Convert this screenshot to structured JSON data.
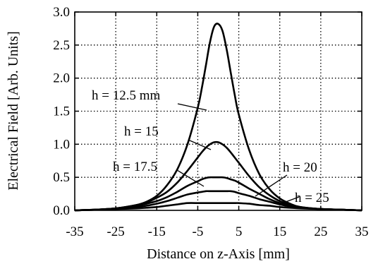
{
  "chart_data": {
    "type": "line",
    "xlabel": "Distance on z-Axis [mm]",
    "ylabel": "Electrical Field [Arb. Units]",
    "xlim": [
      -35,
      35
    ],
    "ylim": [
      0,
      3.0
    ],
    "xticks": [
      "-35",
      "-25",
      "-15",
      "-5",
      "5",
      "15",
      "25",
      "35"
    ],
    "yticks": [
      "0.0",
      "0.5",
      "1.0",
      "1.5",
      "2.0",
      "2.5",
      "3.0"
    ],
    "grid": true,
    "x": [
      -35,
      -30,
      -25,
      -20,
      -17.5,
      -15,
      -12.5,
      -10,
      -7.5,
      -5,
      -4,
      -3,
      -2,
      -1,
      0,
      1,
      2,
      3,
      4,
      5,
      7.5,
      10,
      12.5,
      15,
      17.5,
      20,
      25,
      30,
      35
    ],
    "series": [
      {
        "name": "h = 12.5 mm",
        "values": [
          0.0,
          0.01,
          0.03,
          0.08,
          0.13,
          0.22,
          0.38,
          0.62,
          1.0,
          1.55,
          1.85,
          2.2,
          2.55,
          2.78,
          2.82,
          2.72,
          2.45,
          2.1,
          1.75,
          1.45,
          0.92,
          0.55,
          0.32,
          0.18,
          0.1,
          0.05,
          0.02,
          0.01,
          0.0
        ]
      },
      {
        "name": "h = 15",
        "values": [
          0.0,
          0.01,
          0.03,
          0.08,
          0.12,
          0.19,
          0.28,
          0.42,
          0.6,
          0.8,
          0.88,
          0.95,
          1.0,
          1.03,
          1.03,
          1.0,
          0.95,
          0.88,
          0.8,
          0.72,
          0.52,
          0.35,
          0.23,
          0.14,
          0.09,
          0.05,
          0.02,
          0.01,
          0.0
        ]
      },
      {
        "name": "h = 17.5",
        "values": [
          0.0,
          0.01,
          0.03,
          0.07,
          0.1,
          0.14,
          0.2,
          0.28,
          0.37,
          0.44,
          0.47,
          0.49,
          0.5,
          0.5,
          0.5,
          0.5,
          0.49,
          0.47,
          0.45,
          0.42,
          0.33,
          0.25,
          0.17,
          0.11,
          0.07,
          0.04,
          0.02,
          0.01,
          0.0
        ]
      },
      {
        "name": "h = 20",
        "values": [
          0.0,
          0.01,
          0.02,
          0.05,
          0.07,
          0.1,
          0.14,
          0.19,
          0.24,
          0.27,
          0.28,
          0.29,
          0.29,
          0.29,
          0.29,
          0.29,
          0.29,
          0.29,
          0.28,
          0.26,
          0.22,
          0.17,
          0.13,
          0.09,
          0.06,
          0.04,
          0.02,
          0.01,
          0.0
        ]
      },
      {
        "name": "h = 25",
        "values": [
          0.0,
          0.01,
          0.02,
          0.03,
          0.04,
          0.05,
          0.07,
          0.09,
          0.11,
          0.11,
          0.11,
          0.11,
          0.11,
          0.11,
          0.11,
          0.11,
          0.11,
          0.11,
          0.11,
          0.11,
          0.1,
          0.08,
          0.07,
          0.05,
          0.04,
          0.03,
          0.02,
          0.01,
          0.0
        ]
      }
    ],
    "annotations": [
      {
        "text": "h = 12.5 mm",
        "series": 0
      },
      {
        "text": "h = 15",
        "series": 1
      },
      {
        "text": "h = 17.5",
        "series": 2
      },
      {
        "text": "h = 20",
        "series": 3
      },
      {
        "text": "h = 25",
        "series": 4
      }
    ]
  }
}
